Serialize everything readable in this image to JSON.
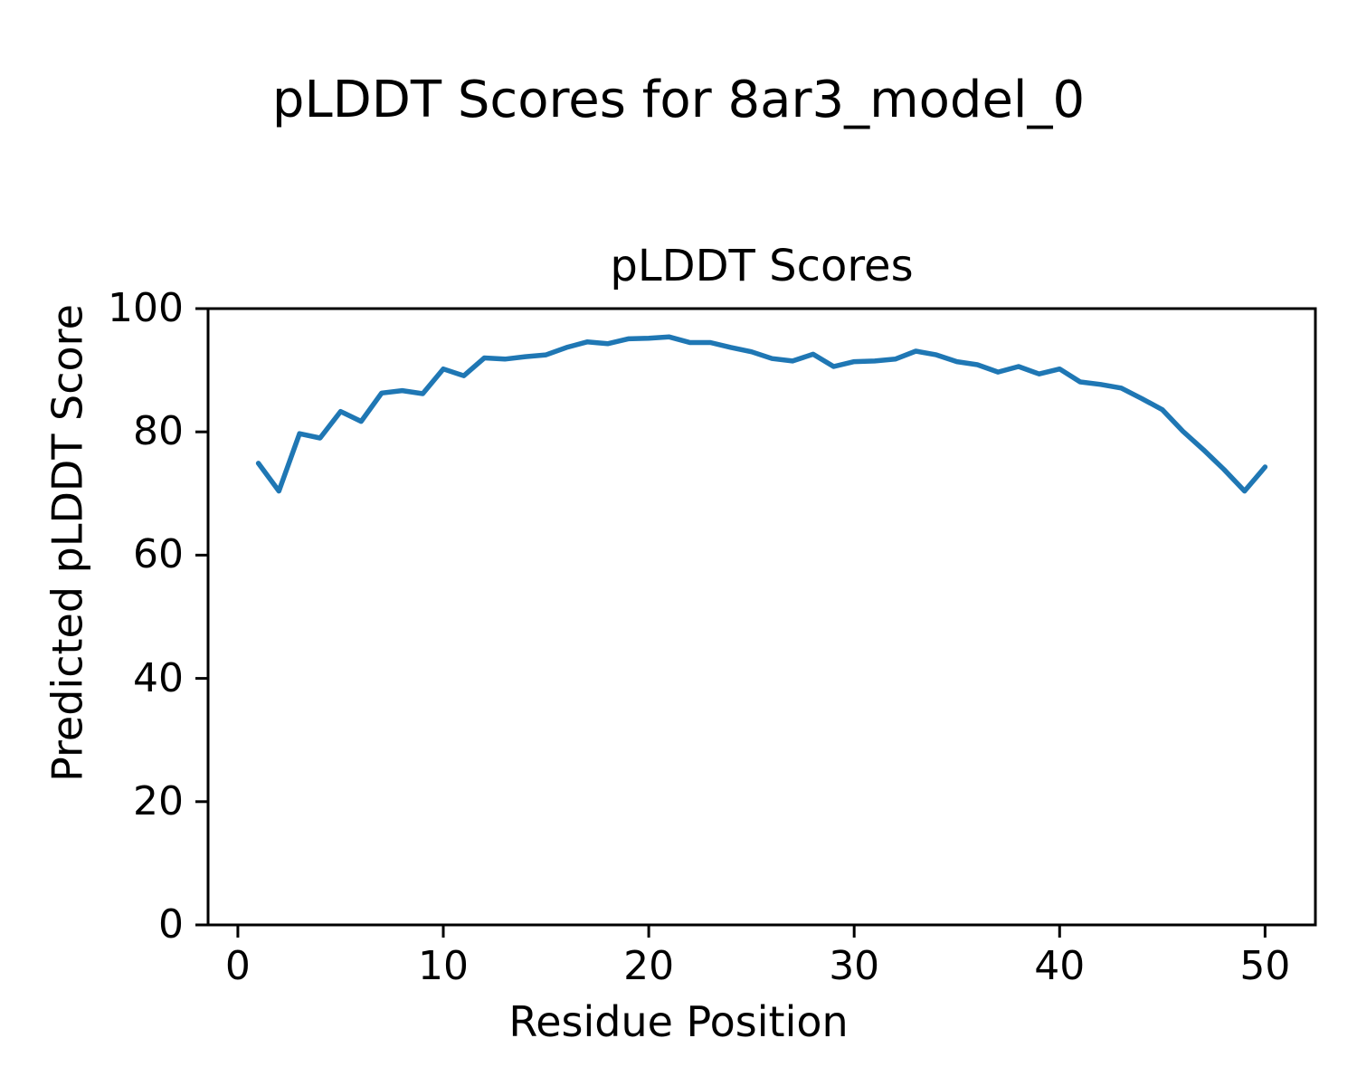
{
  "figure": {
    "suptitle": "pLDDT Scores for 8ar3_model_0"
  },
  "chart_data": {
    "type": "line",
    "title": "pLDDT Scores",
    "suptitle": "pLDDT Scores for 8ar3_model_0",
    "xlabel": "Residue Position",
    "ylabel": "Predicted pLDDT Score",
    "xlim": [
      -1.45,
      52.45
    ],
    "ylim": [
      0,
      100
    ],
    "x_ticks": [
      0,
      10,
      20,
      30,
      40,
      50
    ],
    "y_ticks": [
      0,
      20,
      40,
      60,
      80,
      100
    ],
    "grid": false,
    "legend": "none",
    "line_color": "#1f77b4",
    "axis_color": "#000000",
    "background_color": "#ffffff",
    "series": [
      {
        "name": "pLDDT",
        "x": [
          1,
          2,
          3,
          4,
          5,
          6,
          7,
          8,
          9,
          10,
          11,
          12,
          13,
          14,
          15,
          16,
          17,
          18,
          19,
          20,
          21,
          22,
          23,
          24,
          25,
          26,
          27,
          28,
          29,
          30,
          31,
          32,
          33,
          34,
          35,
          36,
          37,
          38,
          39,
          40,
          41,
          42,
          43,
          44,
          45,
          46,
          47,
          48,
          49,
          50
        ],
        "y": [
          74.9,
          70.4,
          79.7,
          79.0,
          83.3,
          81.7,
          86.3,
          86.7,
          86.2,
          90.2,
          89.1,
          92.0,
          91.8,
          92.2,
          92.5,
          93.7,
          94.6,
          94.3,
          95.1,
          95.2,
          95.4,
          94.5,
          94.5,
          93.7,
          93.0,
          91.9,
          91.5,
          92.6,
          90.6,
          91.4,
          91.5,
          91.8,
          93.1,
          92.5,
          91.4,
          90.9,
          89.7,
          90.6,
          89.4,
          90.2,
          88.1,
          87.7,
          87.1,
          85.4,
          83.6,
          80.1,
          77.1,
          73.9,
          70.4,
          74.3
        ]
      }
    ]
  }
}
